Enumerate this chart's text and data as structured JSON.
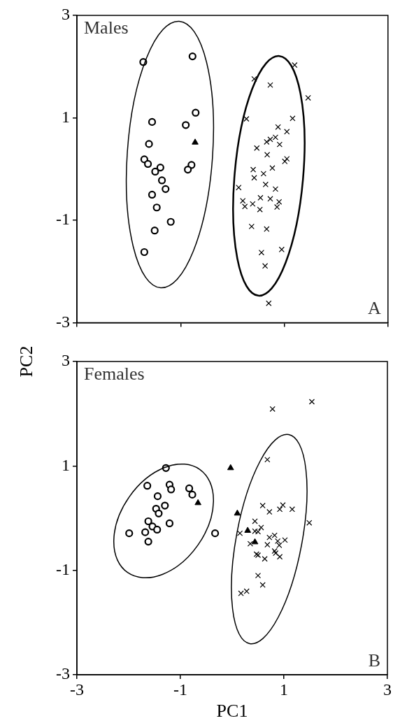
{
  "chart_data": [
    {
      "type": "scatter",
      "annotations": [
        "Males",
        "A"
      ],
      "ylabel": "PC2",
      "xlim": [
        -3,
        3
      ],
      "ylim": [
        -3,
        3
      ],
      "xticks": [
        -3,
        -1,
        1,
        3
      ],
      "yticks": [
        -3,
        -1,
        1,
        3
      ],
      "tick_labels": "y",
      "grid": false,
      "legend": false,
      "series": [
        {
          "marker": "circle",
          "color": "#000000",
          "x": [
            -1.72,
            -0.77,
            -0.71,
            -0.9,
            -1.55,
            -1.61,
            -1.7,
            -1.63,
            -1.39,
            -1.49,
            -0.79,
            -0.86,
            -1.36,
            -1.29,
            -1.55,
            -1.46,
            -1.19,
            -1.5,
            -1.7
          ],
          "values": [
            2.09,
            2.2,
            1.1,
            0.86,
            0.92,
            0.49,
            0.19,
            0.1,
            0.03,
            -0.05,
            0.08,
            -0.01,
            -0.22,
            -0.39,
            -0.5,
            -0.75,
            -1.03,
            -1.2,
            -1.62
          ]
        },
        {
          "marker": "cross",
          "color": "#000000",
          "x": [
            1.2,
            0.42,
            0.73,
            1.46,
            0.27,
            1.16,
            0.88,
            1.05,
            0.83,
            0.73,
            0.66,
            0.91,
            0.47,
            0.67,
            1.05,
            1.01,
            0.77,
            0.4,
            0.6,
            0.42,
            0.64,
            0.12,
            0.83,
            0.54,
            0.73,
            0.2,
            0.9,
            0.39,
            0.24,
            0.86,
            0.53,
            0.37,
            0.66,
            0.95,
            0.56,
            0.63,
            0.7
          ],
          "values": [
            2.03,
            1.76,
            1.64,
            1.39,
            0.98,
            0.99,
            0.82,
            0.73,
            0.62,
            0.58,
            0.53,
            0.48,
            0.41,
            0.28,
            0.2,
            0.15,
            0.02,
            -0.01,
            -0.09,
            -0.17,
            -0.3,
            -0.36,
            -0.39,
            -0.56,
            -0.58,
            -0.62,
            -0.64,
            -0.68,
            -0.73,
            -0.74,
            -0.79,
            -1.12,
            -1.17,
            -1.57,
            -1.63,
            -1.89,
            -2.62
          ]
        },
        {
          "marker": "triangle",
          "color": "#000000",
          "x": [
            -0.72
          ],
          "values": [
            0.52
          ]
        }
      ]
    },
    {
      "type": "scatter",
      "annotations": [
        "Females",
        "B"
      ],
      "xlabel": "PC1",
      "xlim": [
        -3,
        3
      ],
      "ylim": [
        -3,
        3
      ],
      "xticks": [
        -3,
        -1,
        1,
        3
      ],
      "yticks": [
        -3,
        -1,
        1,
        3
      ],
      "grid": false,
      "legend": false,
      "series": [
        {
          "marker": "circle",
          "color": "#000000",
          "x": [
            -1.28,
            -1.64,
            -1.21,
            -1.18,
            -0.83,
            -0.77,
            -1.44,
            -1.3,
            -1.47,
            -1.42,
            -1.62,
            -1.54,
            -1.45,
            -1.21,
            -1.99,
            -1.68,
            -1.62,
            -0.33
          ],
          "values": [
            0.96,
            0.62,
            0.64,
            0.55,
            0.57,
            0.45,
            0.42,
            0.24,
            0.18,
            0.09,
            -0.06,
            -0.16,
            -0.22,
            -0.1,
            -0.29,
            -0.27,
            -0.45,
            -0.29
          ]
        },
        {
          "marker": "cross",
          "color": "#000000",
          "x": [
            0.78,
            1.54,
            0.68,
            0.59,
            0.72,
            0.98,
            0.92,
            1.16,
            1.49,
            0.44,
            0.56,
            0.15,
            0.44,
            0.5,
            0.72,
            0.82,
            0.88,
            1.02,
            0.68,
            0.91,
            0.35,
            0.82,
            0.47,
            0.5,
            0.63,
            0.92,
            0.84,
            0.5,
            0.59,
            0.17,
            0.28
          ],
          "values": [
            2.09,
            2.23,
            1.12,
            0.24,
            0.12,
            0.25,
            0.17,
            0.17,
            -0.09,
            -0.06,
            -0.18,
            -0.29,
            -0.25,
            -0.26,
            -0.37,
            -0.33,
            -0.44,
            -0.42,
            -0.51,
            -0.52,
            -0.49,
            -0.63,
            -0.69,
            -0.71,
            -0.78,
            -0.74,
            -0.67,
            -1.1,
            -1.28,
            -1.44,
            -1.4
          ]
        },
        {
          "marker": "triangle",
          "color": "#000000",
          "x": [
            -0.66,
            -0.03,
            0.1,
            0.3,
            0.44
          ],
          "values": [
            0.29,
            0.96,
            0.09,
            -0.24,
            -0.46
          ]
        }
      ]
    }
  ]
}
